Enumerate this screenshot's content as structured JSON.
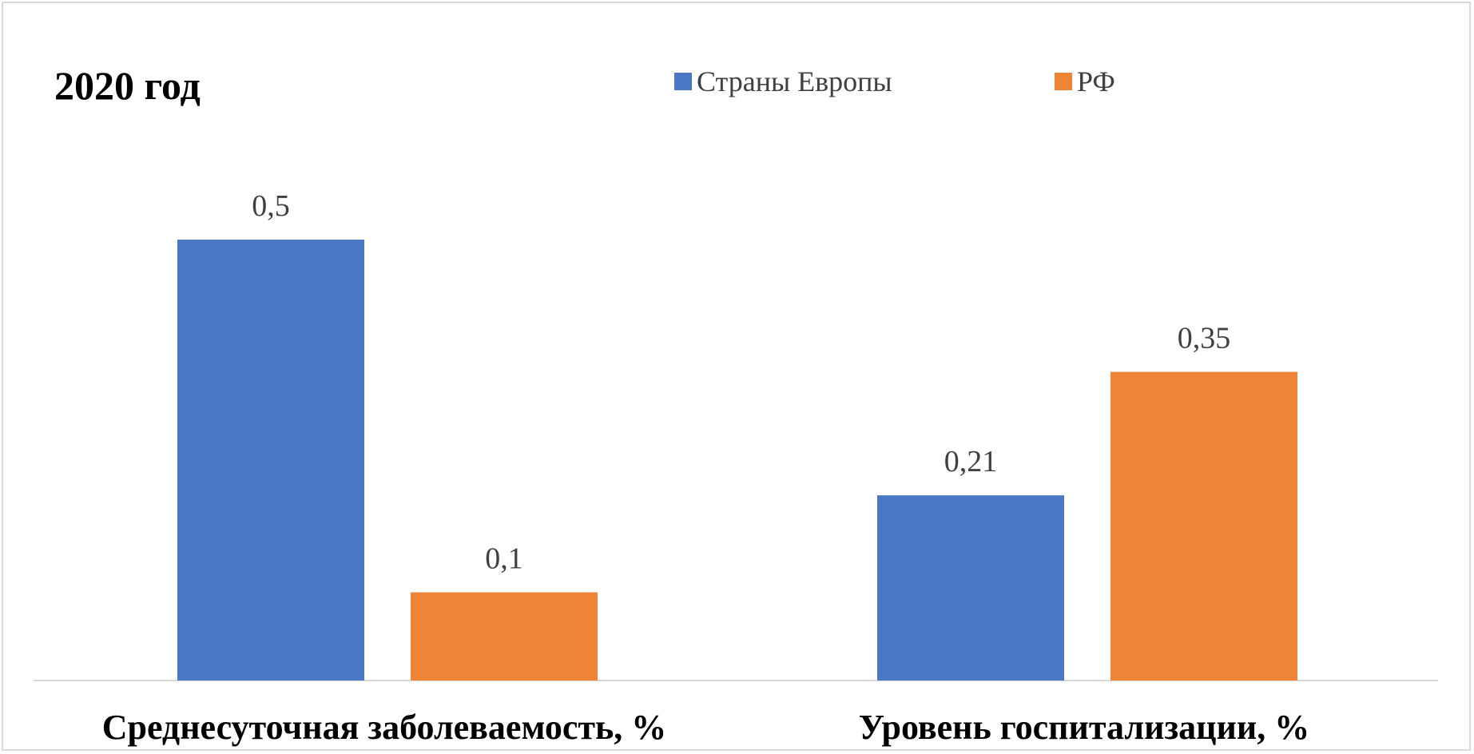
{
  "chart_data": {
    "type": "bar",
    "title": "2020 год",
    "categories": [
      "Среднесуточная заболеваемость, %",
      "Уровень госпитализации, %"
    ],
    "series": [
      {
        "name": "Страны Европы",
        "color": "#4a78c7",
        "values": [
          0.5,
          0.21
        ],
        "labels": [
          "0,5",
          "0,21"
        ]
      },
      {
        "name": "РФ",
        "color": "#ee8436",
        "values": [
          0.1,
          0.35
        ],
        "labels": [
          "0,1",
          "0,35"
        ]
      }
    ],
    "ylim": [
      0,
      0.5
    ],
    "legend_position": "top",
    "grid": false
  }
}
